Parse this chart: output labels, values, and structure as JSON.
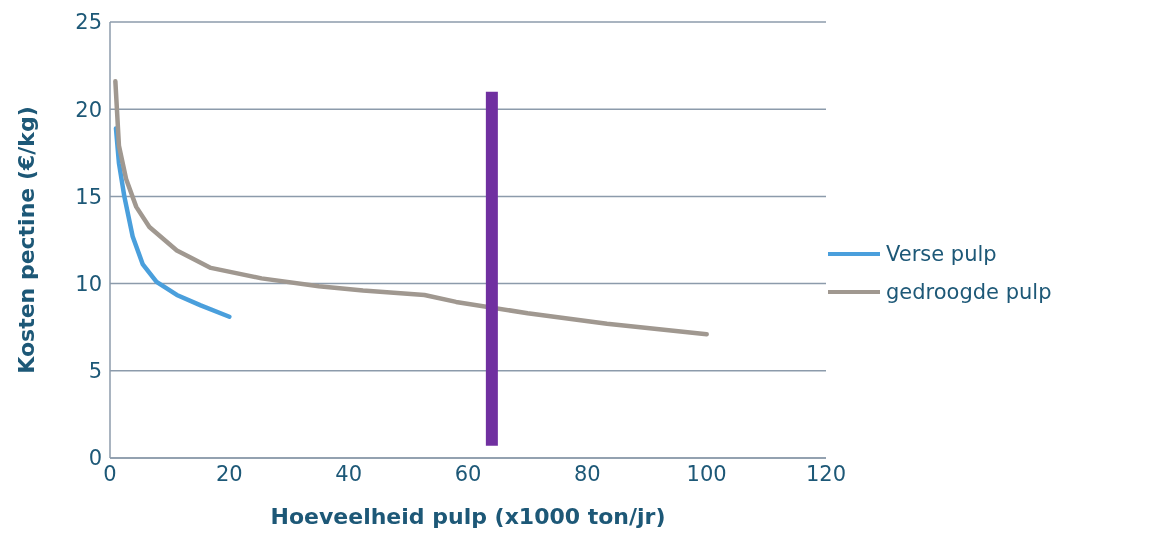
{
  "chart_data": {
    "type": "line",
    "xlabel": "Hoeveelheid pulp (x1000 ton/jr)",
    "ylabel": "Kosten pectine (€/kg)",
    "xlim": [
      0,
      120
    ],
    "xticks": [
      0,
      20,
      40,
      60,
      80,
      100,
      120
    ],
    "ylim": [
      0,
      25
    ],
    "yticks": [
      0,
      5,
      10,
      15,
      20,
      25
    ],
    "grid": "y",
    "legend": "right",
    "marker": "none",
    "line_style": "solid",
    "series": [
      {
        "name": "Verse pulp",
        "color": "#4a9fdc",
        "x": [
          1,
          1.5,
          2.4,
          3.8,
          5.5,
          7.8,
          11.2,
          15.2,
          20
        ],
        "values": [
          18.9,
          16.9,
          15.0,
          12.7,
          11.1,
          10.1,
          9.35,
          8.75,
          8.1
        ]
      },
      {
        "name": "gedroogde pulp",
        "color": "#a09890",
        "x": [
          0.9,
          1.5,
          2.7,
          4.4,
          6.6,
          11.2,
          16.9,
          25.4,
          35,
          42.4,
          52.7,
          58,
          70,
          83.3,
          100
        ],
        "values": [
          21.6,
          17.9,
          16.0,
          14.4,
          13.25,
          11.9,
          10.9,
          10.3,
          9.85,
          9.6,
          9.35,
          8.95,
          8.3,
          7.7,
          7.1
        ]
      },
      {
        "color": "#7030a0",
        "x": [
          64,
          64
        ],
        "values": [
          0.7,
          21
        ]
      }
    ]
  }
}
